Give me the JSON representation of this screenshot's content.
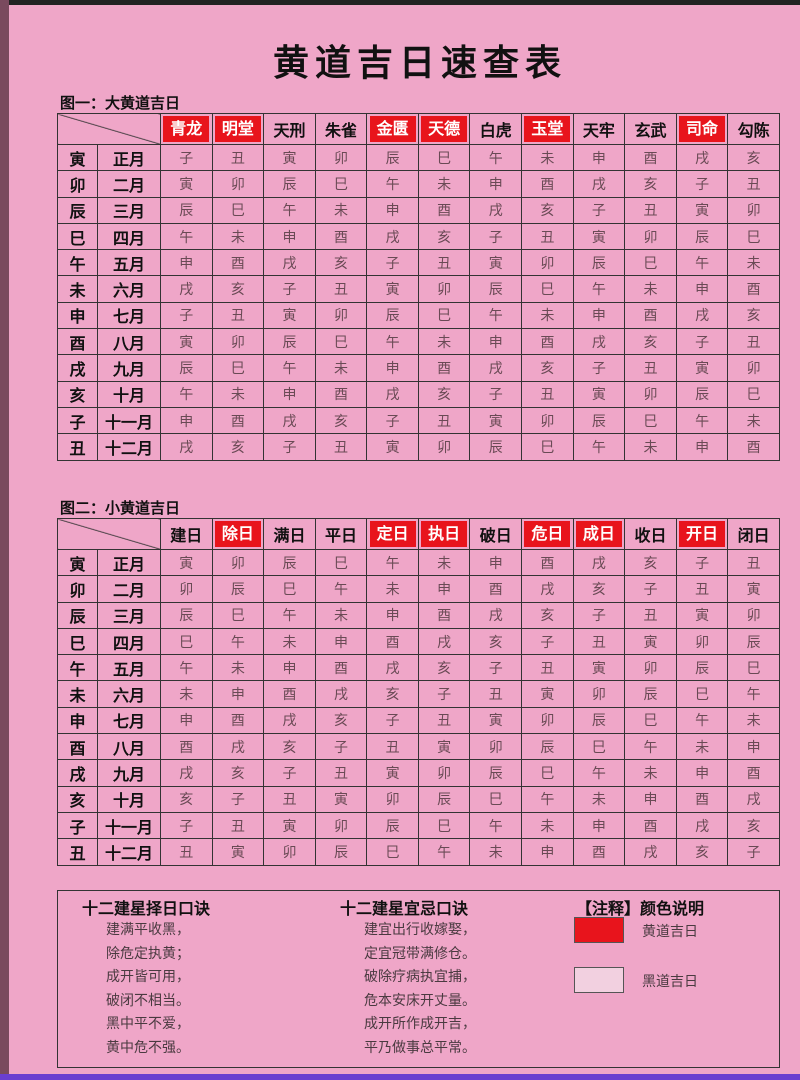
{
  "title": "黄道吉日速查表",
  "colors": {
    "background": "#efa6c8",
    "highlight": "#e8141c"
  },
  "table1": {
    "caption": "图一：大黄道吉日",
    "headers": [
      "青龙",
      "明堂",
      "天刑",
      "朱雀",
      "金匮",
      "天德",
      "白虎",
      "玉堂",
      "天牢",
      "玄武",
      "司命",
      "勾陈"
    ],
    "highlighted": [
      true,
      true,
      false,
      false,
      true,
      true,
      false,
      true,
      false,
      false,
      true,
      false
    ],
    "rows": [
      {
        "zhi": "寅",
        "month": "正月",
        "cells": [
          "子",
          "丑",
          "寅",
          "卯",
          "辰",
          "巳",
          "午",
          "未",
          "申",
          "酉",
          "戌",
          "亥"
        ]
      },
      {
        "zhi": "卯",
        "month": "二月",
        "cells": [
          "寅",
          "卯",
          "辰",
          "巳",
          "午",
          "未",
          "申",
          "酉",
          "戌",
          "亥",
          "子",
          "丑"
        ]
      },
      {
        "zhi": "辰",
        "month": "三月",
        "cells": [
          "辰",
          "巳",
          "午",
          "未",
          "申",
          "酉",
          "戌",
          "亥",
          "子",
          "丑",
          "寅",
          "卯"
        ]
      },
      {
        "zhi": "巳",
        "month": "四月",
        "cells": [
          "午",
          "未",
          "申",
          "酉",
          "戌",
          "亥",
          "子",
          "丑",
          "寅",
          "卯",
          "辰",
          "巳"
        ]
      },
      {
        "zhi": "午",
        "month": "五月",
        "cells": [
          "申",
          "酉",
          "戌",
          "亥",
          "子",
          "丑",
          "寅",
          "卯",
          "辰",
          "巳",
          "午",
          "未"
        ]
      },
      {
        "zhi": "未",
        "month": "六月",
        "cells": [
          "戌",
          "亥",
          "子",
          "丑",
          "寅",
          "卯",
          "辰",
          "巳",
          "午",
          "未",
          "申",
          "酉"
        ]
      },
      {
        "zhi": "申",
        "month": "七月",
        "cells": [
          "子",
          "丑",
          "寅",
          "卯",
          "辰",
          "巳",
          "午",
          "未",
          "申",
          "酉",
          "戌",
          "亥"
        ]
      },
      {
        "zhi": "酉",
        "month": "八月",
        "cells": [
          "寅",
          "卯",
          "辰",
          "巳",
          "午",
          "未",
          "申",
          "酉",
          "戌",
          "亥",
          "子",
          "丑"
        ]
      },
      {
        "zhi": "戌",
        "month": "九月",
        "cells": [
          "辰",
          "巳",
          "午",
          "未",
          "申",
          "酉",
          "戌",
          "亥",
          "子",
          "丑",
          "寅",
          "卯"
        ]
      },
      {
        "zhi": "亥",
        "month": "十月",
        "cells": [
          "午",
          "未",
          "申",
          "酉",
          "戌",
          "亥",
          "子",
          "丑",
          "寅",
          "卯",
          "辰",
          "巳"
        ]
      },
      {
        "zhi": "子",
        "month": "十一月",
        "cells": [
          "申",
          "酉",
          "戌",
          "亥",
          "子",
          "丑",
          "寅",
          "卯",
          "辰",
          "巳",
          "午",
          "未"
        ]
      },
      {
        "zhi": "丑",
        "month": "十二月",
        "cells": [
          "戌",
          "亥",
          "子",
          "丑",
          "寅",
          "卯",
          "辰",
          "巳",
          "午",
          "未",
          "申",
          "酉"
        ]
      }
    ]
  },
  "table2": {
    "caption": "图二：小黄道吉日",
    "headers": [
      "建日",
      "除日",
      "满日",
      "平日",
      "定日",
      "执日",
      "破日",
      "危日",
      "成日",
      "收日",
      "开日",
      "闭日"
    ],
    "highlighted": [
      false,
      true,
      false,
      false,
      true,
      true,
      false,
      true,
      true,
      false,
      true,
      false
    ],
    "rows": [
      {
        "zhi": "寅",
        "month": "正月",
        "cells": [
          "寅",
          "卯",
          "辰",
          "巳",
          "午",
          "未",
          "申",
          "酉",
          "戌",
          "亥",
          "子",
          "丑"
        ]
      },
      {
        "zhi": "卯",
        "month": "二月",
        "cells": [
          "卯",
          "辰",
          "巳",
          "午",
          "未",
          "申",
          "酉",
          "戌",
          "亥",
          "子",
          "丑",
          "寅"
        ]
      },
      {
        "zhi": "辰",
        "month": "三月",
        "cells": [
          "辰",
          "巳",
          "午",
          "未",
          "申",
          "酉",
          "戌",
          "亥",
          "子",
          "丑",
          "寅",
          "卯"
        ]
      },
      {
        "zhi": "巳",
        "month": "四月",
        "cells": [
          "巳",
          "午",
          "未",
          "申",
          "酉",
          "戌",
          "亥",
          "子",
          "丑",
          "寅",
          "卯",
          "辰"
        ]
      },
      {
        "zhi": "午",
        "month": "五月",
        "cells": [
          "午",
          "未",
          "申",
          "酉",
          "戌",
          "亥",
          "子",
          "丑",
          "寅",
          "卯",
          "辰",
          "巳"
        ]
      },
      {
        "zhi": "未",
        "month": "六月",
        "cells": [
          "未",
          "申",
          "酉",
          "戌",
          "亥",
          "子",
          "丑",
          "寅",
          "卯",
          "辰",
          "巳",
          "午"
        ]
      },
      {
        "zhi": "申",
        "month": "七月",
        "cells": [
          "申",
          "酉",
          "戌",
          "亥",
          "子",
          "丑",
          "寅",
          "卯",
          "辰",
          "巳",
          "午",
          "未"
        ]
      },
      {
        "zhi": "酉",
        "month": "八月",
        "cells": [
          "酉",
          "戌",
          "亥",
          "子",
          "丑",
          "寅",
          "卯",
          "辰",
          "巳",
          "午",
          "未",
          "申"
        ]
      },
      {
        "zhi": "戌",
        "month": "九月",
        "cells": [
          "戌",
          "亥",
          "子",
          "丑",
          "寅",
          "卯",
          "辰",
          "巳",
          "午",
          "未",
          "申",
          "酉"
        ]
      },
      {
        "zhi": "亥",
        "month": "十月",
        "cells": [
          "亥",
          "子",
          "丑",
          "寅",
          "卯",
          "辰",
          "巳",
          "午",
          "未",
          "申",
          "酉",
          "戌"
        ]
      },
      {
        "zhi": "子",
        "month": "十一月",
        "cells": [
          "子",
          "丑",
          "寅",
          "卯",
          "辰",
          "巳",
          "午",
          "未",
          "申",
          "酉",
          "戌",
          "亥"
        ]
      },
      {
        "zhi": "丑",
        "month": "十二月",
        "cells": [
          "丑",
          "寅",
          "卯",
          "辰",
          "巳",
          "午",
          "未",
          "申",
          "酉",
          "戌",
          "亥",
          "子"
        ]
      }
    ]
  },
  "notes": {
    "verse1": {
      "title": "十二建星择日口诀",
      "lines": [
        "建满平收黑，",
        "除危定执黄；",
        "成开皆可用，",
        "破闭不相当。",
        "黑中平不爱，",
        "黄中危不强。"
      ]
    },
    "verse2": {
      "title": "十二建星宜忌口诀",
      "lines": [
        "建宜出行收嫁娶，",
        "定宜冠带满修仓。",
        "破除疗病执宜捕，",
        "危本安床开丈量。",
        "成开所作成开吉，",
        "平乃做事总平常。"
      ]
    },
    "legend": {
      "title": "【注释】颜色说明",
      "items": [
        {
          "label": "黄道吉日",
          "color": "#e8141c"
        },
        {
          "label": "黑道吉日",
          "color": "#f2d0e0"
        }
      ]
    }
  }
}
